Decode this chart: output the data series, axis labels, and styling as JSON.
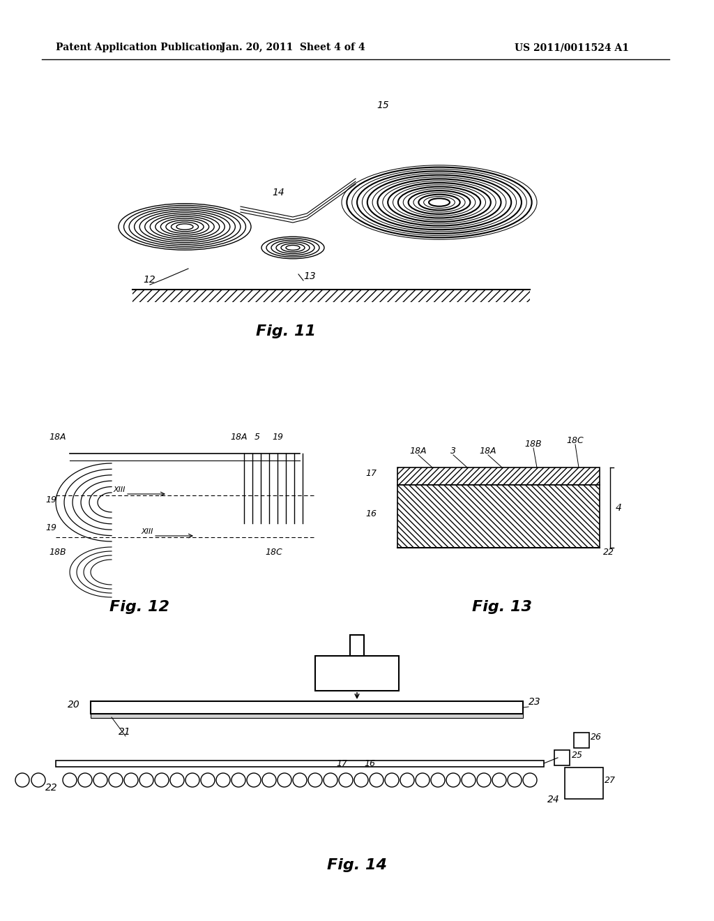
{
  "header_left": "Patent Application Publication",
  "header_mid": "Jan. 20, 2011  Sheet 4 of 4",
  "header_right": "US 2011/0011524 A1",
  "fig11_caption": "Fig. 11",
  "fig12_caption": "Fig. 12",
  "fig13_caption": "Fig. 13",
  "fig14_caption": "Fig. 14",
  "bg_color": "#ffffff",
  "line_color": "#000000"
}
